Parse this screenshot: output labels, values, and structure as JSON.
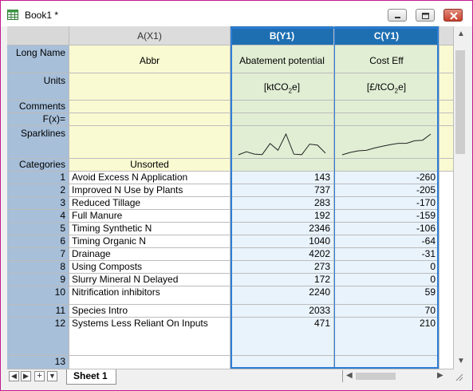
{
  "window": {
    "title": "Book1 *"
  },
  "columns": [
    {
      "header": "A(X1)",
      "selected": false
    },
    {
      "header": "B(Y1)",
      "selected": true
    },
    {
      "header": "C(Y1)",
      "selected": true
    }
  ],
  "meta": {
    "long_name": {
      "label": "Long Name",
      "a": "Abbr",
      "b": "Abatement potential",
      "c": "Cost Eff"
    },
    "units": {
      "label": "Units",
      "a": "",
      "b_main": "[ktCO",
      "b_sub": "2",
      "b_end": "e]",
      "c_main": "[£/tCO",
      "c_sub": "2",
      "c_end": "e]"
    },
    "comments": {
      "label": "Comments"
    },
    "fx": {
      "label": "F(x)="
    },
    "sparklines": {
      "label": "Sparklines"
    },
    "categories": {
      "label": "Categories",
      "a": "Unsorted"
    }
  },
  "rows": [
    {
      "n": "1",
      "a": "Avoid Excess N Application",
      "b": "143",
      "c": "-260"
    },
    {
      "n": "2",
      "a": "Improved N Use by Plants",
      "b": "737",
      "c": "-205"
    },
    {
      "n": "3",
      "a": "Reduced Tillage",
      "b": "283",
      "c": "-170"
    },
    {
      "n": "4",
      "a": "Full Manure",
      "b": "192",
      "c": "-159"
    },
    {
      "n": "5",
      "a": "Timing Synthetic N",
      "b": "2346",
      "c": "-106"
    },
    {
      "n": "6",
      "a": "Timing Organic N",
      "b": "1040",
      "c": "-64"
    },
    {
      "n": "7",
      "a": "Drainage",
      "b": "4202",
      "c": "-31"
    },
    {
      "n": "8",
      "a": "Using Composts",
      "b": "273",
      "c": "0"
    },
    {
      "n": "9",
      "a": "Slurry Mineral N Delayed",
      "b": "172",
      "c": "0"
    },
    {
      "n": "10",
      "a": "Nitrification inhibitors",
      "b": "2240",
      "c": "59"
    },
    {
      "n": "11",
      "a": "Species Intro",
      "b": "2033",
      "c": "70"
    },
    {
      "n": "12",
      "a": "Systems Less Reliant On Inputs",
      "b": "471",
      "c": "210"
    },
    {
      "n": "13",
      "a": "",
      "b": "",
      "c": ""
    }
  ],
  "sheet_tab": "Sheet 1",
  "colors": {
    "accent": "#1e6fb2",
    "window_border": "#c21a8f",
    "row_header": "#a7bfd9"
  }
}
